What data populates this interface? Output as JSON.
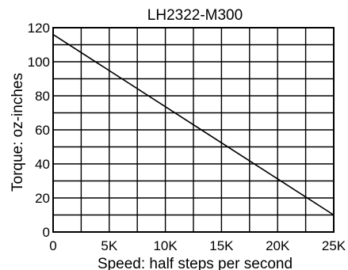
{
  "chart_data": {
    "type": "line",
    "title": "LH2322-M300",
    "xlabel": "Speed: half steps per second",
    "ylabel": "Torque: oz-inches",
    "xlim": [
      0,
      25000
    ],
    "ylim": [
      0,
      120
    ],
    "x_ticks": [
      0,
      5000,
      10000,
      15000,
      20000,
      25000
    ],
    "x_tick_labels": [
      "0",
      "5K",
      "10K",
      "15K",
      "20K",
      "25K"
    ],
    "y_ticks": [
      0,
      20,
      40,
      60,
      80,
      100,
      120
    ],
    "y_tick_labels": [
      "0",
      "20",
      "40",
      "60",
      "80",
      "100",
      "120"
    ],
    "x_grid_step": 2500,
    "y_grid_step": 10,
    "grid": true,
    "legend": "none",
    "colors": {
      "line": "#000000",
      "grid": "#000000",
      "background": "#ffffff"
    },
    "series": [
      {
        "x": [
          0,
          25000
        ],
        "y": [
          116,
          10
        ]
      }
    ]
  }
}
